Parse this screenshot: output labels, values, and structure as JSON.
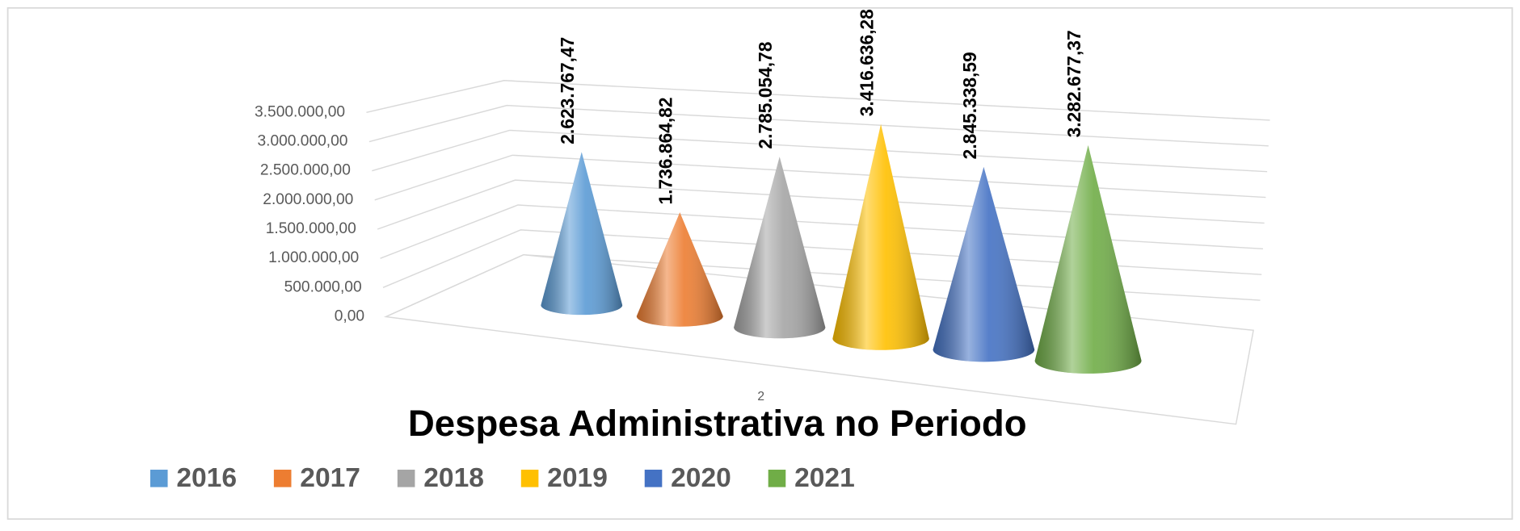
{
  "chart_data": {
    "type": "cone",
    "title": "Despesa Administrativa no Periodo",
    "categories": [
      "2"
    ],
    "series": [
      {
        "name": "2016",
        "color": "#5b9bd5",
        "values": [
          2623767.47
        ],
        "value_labels": [
          "2.623.767,47"
        ]
      },
      {
        "name": "2017",
        "color": "#ed7d31",
        "values": [
          1736864.82
        ],
        "value_labels": [
          "1.736.864,82"
        ]
      },
      {
        "name": "2018",
        "color": "#a5a5a5",
        "values": [
          2785054.78
        ],
        "value_labels": [
          "2.785.054,78"
        ]
      },
      {
        "name": "2019",
        "color": "#ffc000",
        "values": [
          3416636.28
        ],
        "value_labels": [
          "3.416.636,28"
        ]
      },
      {
        "name": "2020",
        "color": "#4472c4",
        "values": [
          2845338.59
        ],
        "value_labels": [
          "2.845.338,59"
        ]
      },
      {
        "name": "2021",
        "color": "#70ad47",
        "values": [
          3282677.37
        ],
        "value_labels": [
          "3.282.677,37"
        ]
      }
    ],
    "ylim": [
      0,
      3500000
    ],
    "yticks": [
      {
        "value": 0,
        "label": "0,00"
      },
      {
        "value": 500000,
        "label": "500.000,00"
      },
      {
        "value": 1000000,
        "label": "1.000.000,00"
      },
      {
        "value": 1500000,
        "label": "1.500.000,00"
      },
      {
        "value": 2000000,
        "label": "2.000.000,00"
      },
      {
        "value": 2500000,
        "label": "2.500.000,00"
      },
      {
        "value": 3000000,
        "label": "3.000.000,00"
      },
      {
        "value": 3500000,
        "label": "3.500.000,00"
      }
    ],
    "grid": true,
    "legend": "bottom"
  }
}
